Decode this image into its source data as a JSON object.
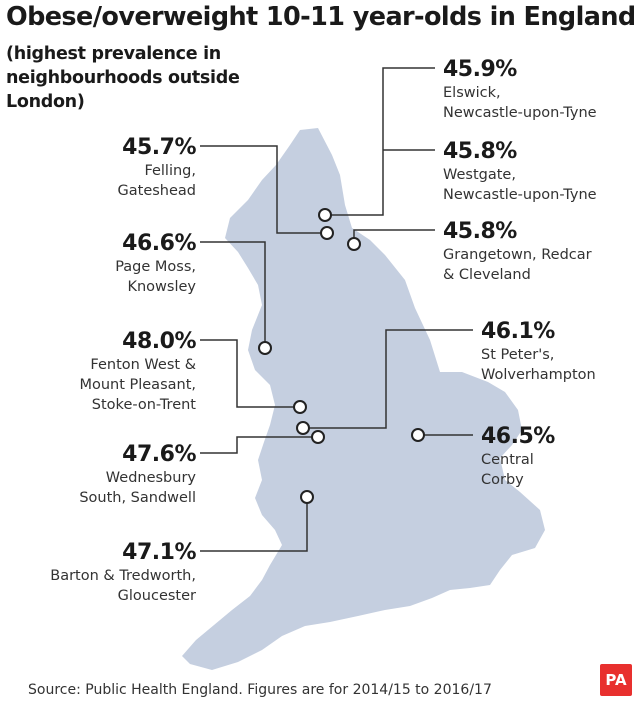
{
  "title": "Obese/overweight 10-11 year-olds in England",
  "subtitle": "(highest prevalence in neighbourhoods outside London)",
  "source": "Source: Public Health England. Figures are for 2014/15 to 2016/17",
  "logo": "PA",
  "colors": {
    "map_fill": "#c5cfe0",
    "leader_line": "#333333",
    "marker_fill": "#ffffff",
    "logo_bg": "#e8302e"
  },
  "locations": [
    {
      "value": "45.9%",
      "place": [
        "Elswick,",
        "Newcastle-upon-Tyne"
      ]
    },
    {
      "value": "45.8%",
      "place": [
        "Westgate,",
        "Newcastle-upon-Tyne"
      ]
    },
    {
      "value": "45.8%",
      "place": [
        "Grangetown, Redcar",
        "& Cleveland"
      ]
    },
    {
      "value": "46.1%",
      "place": [
        "St Peter's,",
        "Wolverhampton"
      ]
    },
    {
      "value": "46.5%",
      "place": [
        "Central",
        "Corby"
      ]
    },
    {
      "value": "45.7%",
      "place": [
        "Felling,",
        "Gateshead"
      ]
    },
    {
      "value": "46.6%",
      "place": [
        "Page Moss,",
        "Knowsley"
      ]
    },
    {
      "value": "48.0%",
      "place": [
        "Fenton West &",
        "Mount Pleasant,",
        "Stoke-on-Trent"
      ]
    },
    {
      "value": "47.6%",
      "place": [
        "Wednesbury",
        "South, Sandwell"
      ]
    },
    {
      "value": "47.1%",
      "place": [
        "Barton & Tredworth,",
        "Gloucester"
      ]
    }
  ]
}
